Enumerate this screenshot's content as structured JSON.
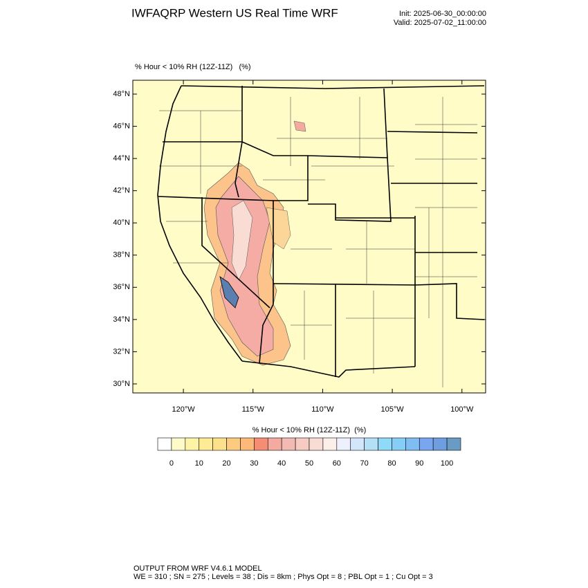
{
  "header": {
    "title": "IWFAQRP Western US Real Time WRF",
    "init": "Init: 2025-06-30_00:00:00",
    "valid": "Valid: 2025-07-02_11:00:00"
  },
  "map": {
    "label": "% Hour < 10% RH (12Z-11Z)   (%)",
    "lonlim": [
      -123.63,
      -98.3
    ],
    "latlim": [
      29.44,
      48.86
    ],
    "lat_ticks": [
      {
        "value": 30,
        "label": "30°N"
      },
      {
        "value": 32,
        "label": "32°N"
      },
      {
        "value": 34,
        "label": "34°N"
      },
      {
        "value": 36,
        "label": "36°N"
      },
      {
        "value": 38,
        "label": "38°N"
      },
      {
        "value": 40,
        "label": "40°N"
      },
      {
        "value": 42,
        "label": "42°N"
      },
      {
        "value": 44,
        "label": "44°N"
      },
      {
        "value": 46,
        "label": "46°N"
      },
      {
        "value": 48,
        "label": "48°N"
      }
    ],
    "lon_ticks": [
      {
        "value": -120,
        "label": "120°W"
      },
      {
        "value": -115,
        "label": "115°W"
      },
      {
        "value": -110,
        "label": "110°W"
      },
      {
        "value": -105,
        "label": "105°W"
      },
      {
        "value": -100,
        "label": "100°W"
      }
    ]
  },
  "colorbar": {
    "title": "% Hour < 10% RH (12Z-11Z)  (%)",
    "levels": [
      0,
      5,
      10,
      15,
      20,
      25,
      30,
      35,
      40,
      45,
      50,
      55,
      60,
      65,
      70,
      75,
      80,
      85,
      90,
      95,
      100
    ],
    "ticks": [
      0,
      10,
      20,
      30,
      40,
      50,
      60,
      70,
      80,
      90,
      100
    ],
    "colors": [
      "#ffffff",
      "#fffbc8",
      "#fff3a6",
      "#ffeb96",
      "#fde08a",
      "#fdcb80",
      "#fcb978",
      "#f58d74",
      "#f5aaa0",
      "#f3bab3",
      "#f5cbc2",
      "#f9dcd3",
      "#fcefe9",
      "#eef0fe",
      "#d4e6fb",
      "#b4dff5",
      "#8fdaf8",
      "#86cef5",
      "#7fbdf3",
      "#78a6ef",
      "#6f9ee0",
      "#6a9bc4"
    ]
  },
  "footer": {
    "line1": "OUTPUT FROM WRF V4.6.1 MODEL",
    "line2": "WE = 310 ; SN = 275 ; Levels = 38 ; Dis = 8km ; Phys Opt = 8 ; PBL Opt = 1 ; Cu Opt = 3"
  }
}
